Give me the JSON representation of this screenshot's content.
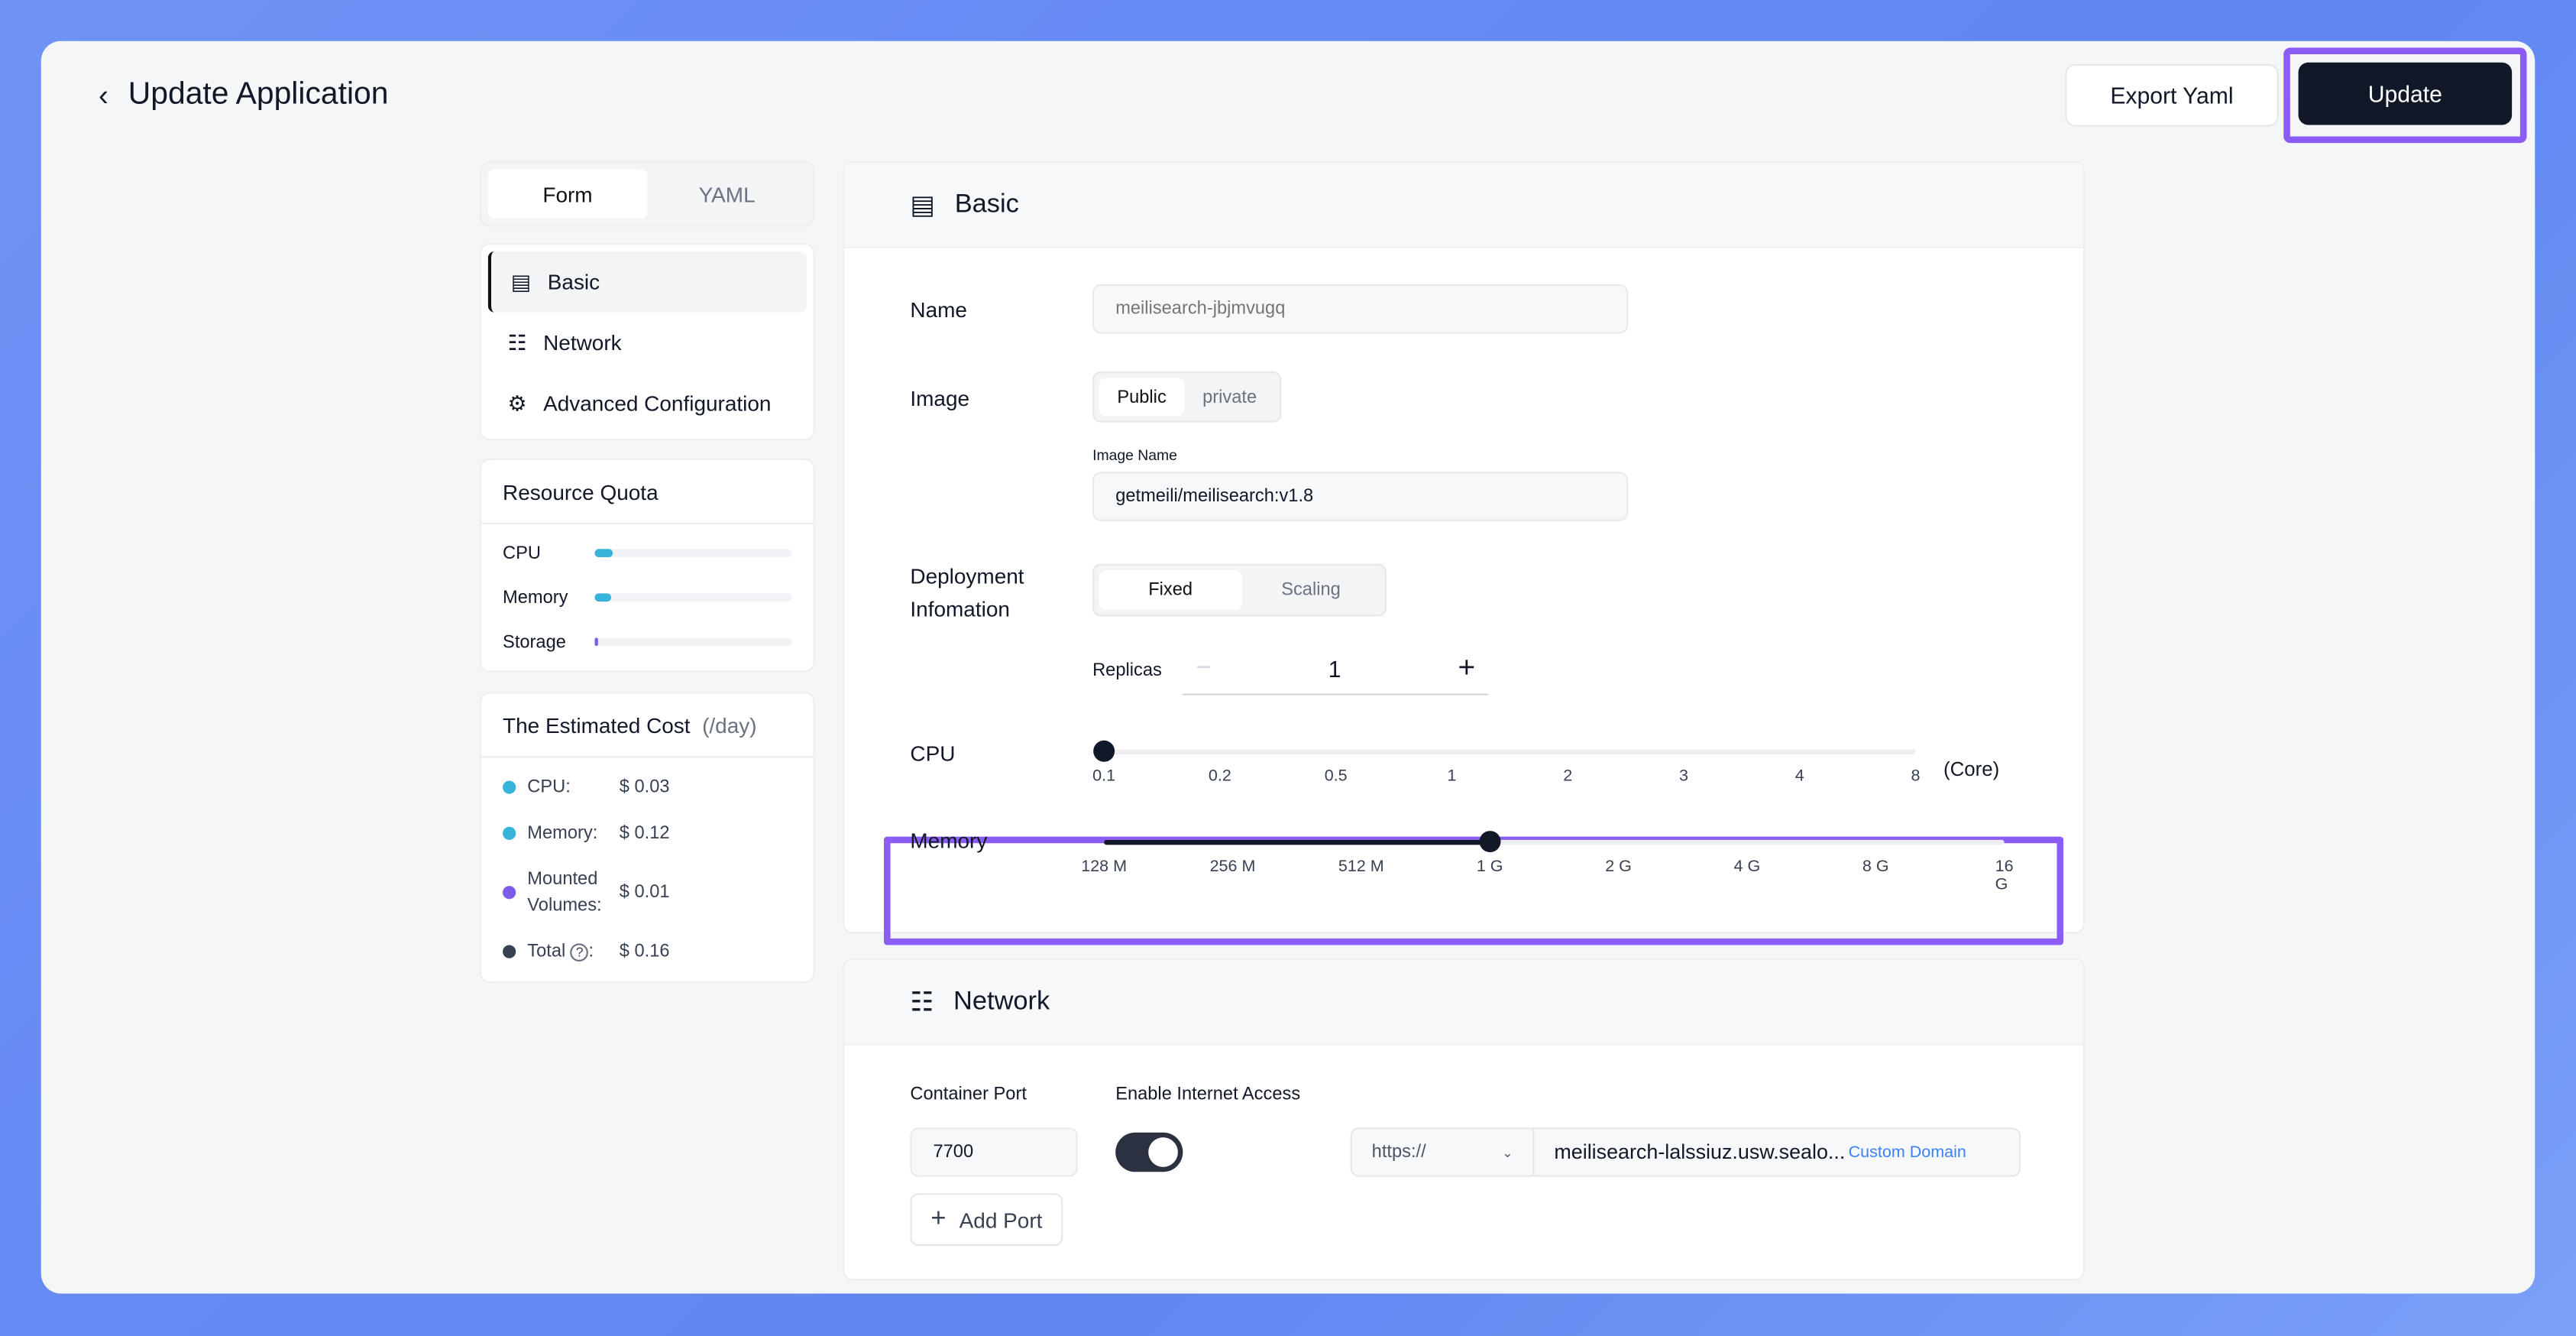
{
  "header": {
    "title": "Update Application",
    "export_label": "Export Yaml",
    "update_label": "Update"
  },
  "tabs": [
    {
      "label": "Form",
      "active": true
    },
    {
      "label": "YAML",
      "active": false
    }
  ],
  "nav": [
    {
      "label": "Basic",
      "icon": "document-icon",
      "active": true
    },
    {
      "label": "Network",
      "icon": "network-icon"
    },
    {
      "label": "Advanced Configuration",
      "icon": "gear-icon"
    }
  ],
  "quota": {
    "title": "Resource Quota",
    "items": [
      {
        "label": "CPU",
        "percent": 9,
        "color": "#36b4da"
      },
      {
        "label": "Memory",
        "percent": 8,
        "color": "#36b4da"
      },
      {
        "label": "Storage",
        "percent": 2,
        "color": "#7c5ce9"
      }
    ]
  },
  "cost": {
    "title": "The Estimated Cost",
    "unit": "(/day)",
    "items": [
      {
        "label": "CPU:",
        "value": "$ 0.03",
        "color": "#36b4da"
      },
      {
        "label": "Memory:",
        "value": "$ 0.12",
        "color": "#36b4da"
      },
      {
        "label": "Mounted Volumes:",
        "value": "$ 0.01",
        "color": "#7c5ce9"
      },
      {
        "label": "Total",
        "value": "$ 0.16",
        "color": "#374151"
      }
    ]
  },
  "basic": {
    "title": "Basic",
    "name_label": "Name",
    "name_placeholder": "meilisearch-jbjmvugq",
    "image_label": "Image",
    "image_options": [
      "Public",
      "private"
    ],
    "image_name_label": "Image Name",
    "image_name": "getmeili/meilisearch:v1.8",
    "deploy_label": "Deployment Infomation",
    "deploy_options": [
      "Fixed",
      "Scaling"
    ],
    "replicas_label": "Replicas",
    "replicas": "1",
    "cpu_label": "CPU",
    "cpu_ticks": [
      "0.1",
      "0.2",
      "0.5",
      "1",
      "2",
      "3",
      "4",
      "8"
    ],
    "cpu_unit": "(Core)",
    "cpu_value": "0.1",
    "memory_label": "Memory",
    "memory_ticks": [
      "128 M",
      "256 M",
      "512 M",
      "1 G",
      "2 G",
      "4 G",
      "8 G",
      "16 G"
    ],
    "memory_value": "1 G"
  },
  "network": {
    "title": "Network",
    "port_label": "Container Port",
    "port": "7700",
    "internet_label": "Enable Internet Access",
    "internet_enabled": true,
    "protocol": "https://",
    "domain": "meilisearch-lalssiuz.usw.sealo...",
    "custom_domain": "Custom Domain",
    "add_port": "Add Port"
  },
  "colors": {
    "accent": "#8b5cf6",
    "primary": "#111827",
    "link": "#3b82f6"
  }
}
